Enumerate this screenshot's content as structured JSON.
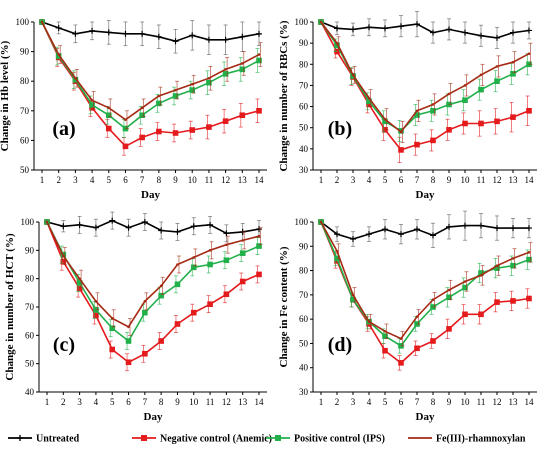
{
  "chart_data": [
    {
      "type": "line",
      "panel_label": "(a)",
      "xlabel": "Day",
      "ylabel": "Change in Hb level (%)",
      "x": [
        1,
        2,
        3,
        4,
        5,
        6,
        7,
        8,
        9,
        10,
        11,
        12,
        13,
        14
      ],
      "xlim": [
        1,
        14
      ],
      "ylim": [
        50,
        100
      ],
      "yticks": [
        50,
        60,
        70,
        80,
        90,
        100
      ],
      "series": [
        {
          "name": "Untreated",
          "color": "#000000",
          "marker": "cross",
          "values": [
            100,
            98,
            96,
            97,
            96.5,
            96,
            96,
            95,
            93.5,
            95.5,
            94,
            94,
            95,
            96
          ],
          "errors": [
            0,
            2,
            3,
            3,
            4,
            4,
            4,
            4,
            4,
            5,
            5,
            5,
            5,
            4
          ]
        },
        {
          "name": "Negative control (Anemic)",
          "color": "#e41a1c",
          "marker": "square",
          "values": [
            100,
            88,
            80,
            71,
            64,
            58,
            61,
            63,
            62.5,
            63.5,
            64.5,
            66.5,
            68.5,
            70
          ],
          "errors": [
            0,
            3,
            3,
            3,
            3,
            3,
            3,
            3,
            3,
            3,
            4,
            4,
            4,
            4
          ]
        },
        {
          "name": "Positive control (IPS)",
          "color": "#22b04b",
          "marker": "square",
          "values": [
            100,
            88.5,
            80.5,
            72,
            68.5,
            64,
            68.5,
            72.5,
            75,
            77,
            79.5,
            82.5,
            84,
            87
          ],
          "errors": [
            0,
            3,
            3,
            3,
            3,
            3,
            3,
            3,
            3,
            3,
            4,
            4,
            4,
            4
          ]
        },
        {
          "name": "Fe(III)-rhamnoxylan",
          "color": "#a52a14",
          "marker": "line",
          "values": [
            100,
            89,
            81,
            73.5,
            71,
            67,
            71,
            75,
            77,
            79,
            81,
            84,
            86,
            89
          ],
          "errors": [
            0,
            3,
            3,
            3,
            3,
            3,
            3,
            3,
            3,
            3,
            4,
            4,
            4,
            4
          ]
        }
      ]
    },
    {
      "type": "line",
      "panel_label": "(b)",
      "xlabel": "Day",
      "ylabel": "Change in number of RBCs (%)",
      "x": [
        1,
        2,
        3,
        4,
        5,
        6,
        7,
        8,
        9,
        10,
        11,
        12,
        13,
        14
      ],
      "xlim": [
        1,
        14
      ],
      "ylim": [
        30,
        100
      ],
      "yticks": [
        30,
        40,
        50,
        60,
        70,
        80,
        90,
        100
      ],
      "series": [
        {
          "name": "Untreated",
          "color": "#000000",
          "marker": "cross",
          "values": [
            100,
            97,
            96.5,
            97.5,
            97,
            98,
            99,
            95,
            96.5,
            95,
            93.5,
            92.5,
            95,
            96
          ],
          "errors": [
            0,
            3,
            3,
            4,
            4,
            5,
            6,
            5,
            5,
            5,
            5,
            5,
            5,
            4
          ]
        },
        {
          "name": "Negative control (Anemic)",
          "color": "#e41a1c",
          "marker": "square",
          "values": [
            100,
            86,
            74,
            61,
            49,
            39.5,
            42,
            44,
            49,
            52,
            52,
            53,
            55,
            58
          ],
          "errors": [
            0,
            3,
            4,
            4,
            5,
            6,
            5,
            5,
            5,
            5,
            6,
            6,
            7,
            7
          ]
        },
        {
          "name": "Positive control (IPS)",
          "color": "#22b04b",
          "marker": "square",
          "values": [
            100,
            89,
            74.5,
            62.5,
            53,
            48.5,
            56,
            58,
            61,
            63,
            68,
            72,
            75.5,
            80
          ],
          "errors": [
            0,
            3,
            4,
            4,
            5,
            5,
            5,
            5,
            5,
            5,
            5,
            5,
            5,
            5
          ]
        },
        {
          "name": "Fe(III)-rhamnoxylan",
          "color": "#a52a14",
          "marker": "line",
          "values": [
            100,
            90,
            75,
            64,
            54,
            48,
            58,
            61,
            66,
            70,
            75,
            79,
            81,
            85
          ],
          "errors": [
            0,
            3,
            4,
            4,
            5,
            5,
            5,
            5,
            5,
            5,
            5,
            5,
            5,
            5
          ]
        }
      ]
    },
    {
      "type": "line",
      "panel_label": "(c)",
      "xlabel": "Day",
      "ylabel": "Change in number of HCT (%)",
      "x": [
        1,
        2,
        3,
        4,
        5,
        6,
        7,
        8,
        9,
        10,
        11,
        12,
        13,
        14
      ],
      "xlim": [
        1,
        14
      ],
      "ylim": [
        40,
        100
      ],
      "yticks": [
        40,
        50,
        60,
        70,
        80,
        90,
        100
      ],
      "series": [
        {
          "name": "Untreated",
          "color": "#000000",
          "marker": "cross",
          "values": [
            100,
            98.5,
            99,
            98,
            100.5,
            98,
            100,
            97,
            96.5,
            98.5,
            99,
            96,
            96.5,
            97.5
          ],
          "errors": [
            0,
            2,
            3,
            3,
            3,
            3,
            3,
            3,
            3,
            3,
            3,
            3,
            3,
            3
          ]
        },
        {
          "name": "Negative control (Anemic)",
          "color": "#e41a1c",
          "marker": "square",
          "values": [
            100,
            86,
            76.5,
            67,
            55,
            50.5,
            53.5,
            58,
            64,
            68,
            71,
            74.5,
            79,
            81.5
          ],
          "errors": [
            0,
            3,
            3,
            3,
            3,
            3,
            3,
            3,
            3,
            3,
            3,
            3,
            3,
            3
          ]
        },
        {
          "name": "Positive control (IPS)",
          "color": "#22b04b",
          "marker": "square",
          "values": [
            100,
            88.5,
            78.5,
            69,
            62.5,
            58,
            68,
            74,
            78,
            84,
            85,
            86.5,
            89,
            91.5
          ],
          "errors": [
            0,
            3,
            3,
            3,
            3,
            3,
            3,
            3,
            3,
            3,
            3,
            3,
            3,
            3
          ]
        },
        {
          "name": "Fe(III)-rhamnoxylan",
          "color": "#a52a14",
          "marker": "line",
          "values": [
            100,
            88,
            80,
            72,
            66,
            63,
            72,
            77.5,
            85,
            87.5,
            90,
            92,
            93.5,
            95
          ],
          "errors": [
            0,
            3,
            3,
            3,
            3,
            3,
            3,
            3,
            3,
            3,
            3,
            3,
            3,
            3
          ]
        }
      ]
    },
    {
      "type": "line",
      "panel_label": "(d)",
      "xlabel": "Day",
      "ylabel": "Change in Fe content (%)",
      "x": [
        1,
        2,
        3,
        4,
        5,
        6,
        7,
        8,
        9,
        10,
        11,
        12,
        13,
        14
      ],
      "xlim": [
        1,
        14
      ],
      "ylim": [
        30,
        100
      ],
      "yticks": [
        30,
        40,
        50,
        60,
        70,
        80,
        90,
        100
      ],
      "series": [
        {
          "name": "Untreated",
          "color": "#000000",
          "marker": "cross",
          "values": [
            100,
            95,
            93,
            95,
            97,
            95,
            97,
            94.5,
            98,
            98.5,
            98.5,
            97.5,
            97.5,
            97.5
          ],
          "errors": [
            0,
            3,
            3,
            3,
            4,
            4,
            4,
            5,
            5,
            6,
            5,
            5,
            4,
            4
          ]
        },
        {
          "name": "Negative control (Anemic)",
          "color": "#e41a1c",
          "marker": "square",
          "values": [
            100,
            84,
            68,
            58,
            47,
            42,
            48,
            51,
            56,
            62,
            62,
            67,
            67.5,
            68.5
          ],
          "errors": [
            0,
            3,
            3,
            3,
            3,
            3,
            3,
            3,
            4,
            4,
            4,
            4,
            4,
            4
          ]
        },
        {
          "name": "Positive control (IPS)",
          "color": "#22b04b",
          "marker": "square",
          "values": [
            100,
            85,
            68,
            59,
            53,
            49,
            58,
            65,
            69,
            73,
            79,
            81,
            82,
            84.5
          ],
          "errors": [
            0,
            3,
            3,
            3,
            3,
            3,
            3,
            3,
            4,
            4,
            4,
            4,
            4,
            4
          ]
        },
        {
          "name": "Fe(III)-rhamnoxylan",
          "color": "#a52a14",
          "marker": "line",
          "values": [
            100,
            88,
            70,
            59,
            55,
            52,
            61,
            68,
            72,
            75.5,
            78,
            82,
            85,
            87.5
          ],
          "errors": [
            0,
            3,
            3,
            3,
            3,
            3,
            3,
            3,
            4,
            4,
            4,
            4,
            4,
            4
          ]
        }
      ]
    }
  ],
  "legend": {
    "placement": "bottom",
    "items": [
      {
        "label": "Untreated",
        "color": "#000000",
        "marker": "cross"
      },
      {
        "label": "Negative control (Anemic)",
        "color": "#e41a1c",
        "marker": "square"
      },
      {
        "label": "Positive control (IPS)",
        "color": "#22b04b",
        "marker": "square"
      },
      {
        "label": "Fe(III)-rhamnoxylan",
        "color": "#a52a14",
        "marker": "line"
      }
    ]
  }
}
